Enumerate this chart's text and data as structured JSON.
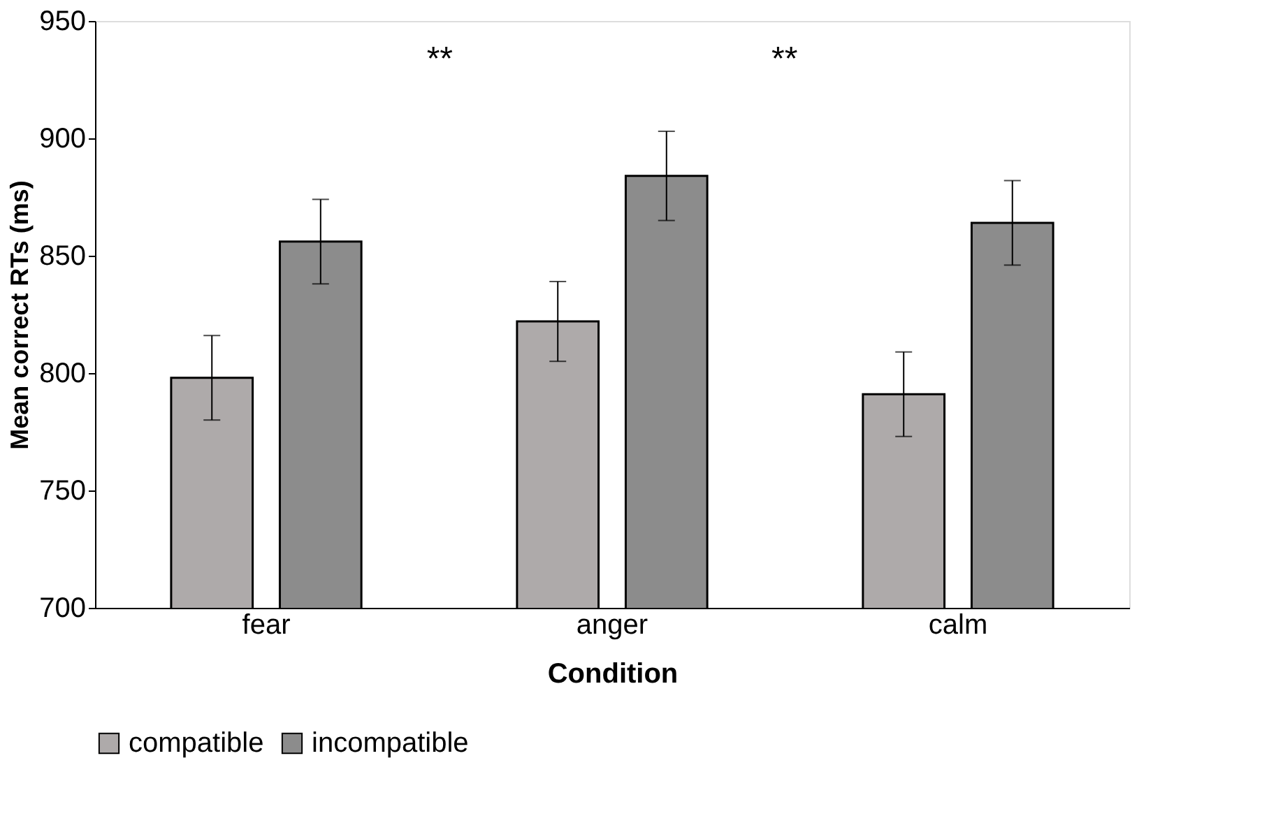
{
  "chart_data": {
    "type": "bar",
    "xlabel": "Condition",
    "ylabel": "Mean correct RTs (ms)",
    "categories": [
      "fear",
      "anger",
      "calm"
    ],
    "series": [
      {
        "name": "compatible",
        "color": "#aeaaaa",
        "values": [
          798,
          822,
          791
        ],
        "errors": [
          18,
          17,
          18
        ]
      },
      {
        "name": "incompatible",
        "color": "#8c8c8c",
        "values": [
          856,
          884,
          864
        ],
        "errors": [
          18,
          19,
          18
        ]
      }
    ],
    "ylim": [
      700,
      950
    ],
    "yticks": [
      700,
      750,
      800,
      850,
      900,
      950
    ],
    "annotations": [
      "**",
      "**"
    ],
    "legend": "bottom",
    "grid": false
  }
}
